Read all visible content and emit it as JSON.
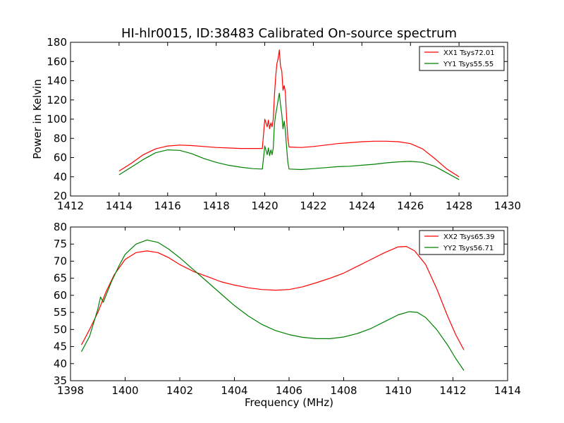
{
  "chart_data": [
    {
      "type": "line",
      "title": "HI-hlr0015, ID:38483 Calibrated On-source spectrum",
      "xlabel": "",
      "ylabel": "Power in Kelvin",
      "xlim": [
        1412,
        1430
      ],
      "ylim": [
        20,
        180
      ],
      "xticks": [
        1412,
        1414,
        1416,
        1418,
        1420,
        1422,
        1424,
        1426,
        1428,
        1430
      ],
      "yticks": [
        20,
        40,
        60,
        80,
        100,
        120,
        140,
        160,
        180
      ],
      "grid": false,
      "legend_position": "top-right",
      "series": [
        {
          "name": "XX1 Tsys72.01",
          "color": "#ff0000",
          "points": [
            [
              1414,
              46
            ],
            [
              1414.5,
              54
            ],
            [
              1415,
              63
            ],
            [
              1415.5,
              69
            ],
            [
              1416,
              72
            ],
            [
              1416.5,
              73
            ],
            [
              1417,
              72.5
            ],
            [
              1417.5,
              71.5
            ],
            [
              1418,
              70.5
            ],
            [
              1418.5,
              70
            ],
            [
              1419,
              69.5
            ],
            [
              1419.5,
              69.5
            ],
            [
              1419.9,
              69.5
            ],
            [
              1420.0,
              100
            ],
            [
              1420.1,
              92
            ],
            [
              1420.15,
              99
            ],
            [
              1420.2,
              90
            ],
            [
              1420.25,
              96
            ],
            [
              1420.3,
              92
            ],
            [
              1420.35,
              100
            ],
            [
              1420.4,
              125
            ],
            [
              1420.45,
              145
            ],
            [
              1420.5,
              158
            ],
            [
              1420.55,
              163
            ],
            [
              1420.6,
              172
            ],
            [
              1420.65,
              155
            ],
            [
              1420.7,
              150
            ],
            [
              1420.75,
              130
            ],
            [
              1420.8,
              135
            ],
            [
              1420.85,
              128
            ],
            [
              1420.9,
              100
            ],
            [
              1420.95,
              80
            ],
            [
              1421.0,
              71
            ],
            [
              1421.5,
              70.5
            ],
            [
              1422,
              71.5
            ],
            [
              1422.5,
              73
            ],
            [
              1423,
              74.5
            ],
            [
              1423.5,
              75.5
            ],
            [
              1424,
              76.5
            ],
            [
              1424.5,
              77
            ],
            [
              1425,
              77
            ],
            [
              1425.5,
              76.5
            ],
            [
              1426,
              74.5
            ],
            [
              1426.5,
              69
            ],
            [
              1427,
              59
            ],
            [
              1427.5,
              48
            ],
            [
              1428,
              40
            ]
          ]
        },
        {
          "name": "YY1 Tsys55.55",
          "color": "#008000",
          "points": [
            [
              1414,
              42
            ],
            [
              1414.5,
              50
            ],
            [
              1415,
              58
            ],
            [
              1415.5,
              65
            ],
            [
              1416,
              68
            ],
            [
              1416.5,
              67.5
            ],
            [
              1417,
              64
            ],
            [
              1417.5,
              59
            ],
            [
              1418,
              55
            ],
            [
              1418.5,
              52
            ],
            [
              1419,
              50
            ],
            [
              1419.5,
              48.5
            ],
            [
              1419.9,
              48
            ],
            [
              1420.0,
              72
            ],
            [
              1420.1,
              63
            ],
            [
              1420.15,
              70
            ],
            [
              1420.2,
              62
            ],
            [
              1420.25,
              68
            ],
            [
              1420.3,
              63
            ],
            [
              1420.35,
              70
            ],
            [
              1420.4,
              95
            ],
            [
              1420.45,
              105
            ],
            [
              1420.5,
              112
            ],
            [
              1420.55,
              120
            ],
            [
              1420.6,
              127
            ],
            [
              1420.65,
              115
            ],
            [
              1420.7,
              105
            ],
            [
              1420.75,
              90
            ],
            [
              1420.8,
              98
            ],
            [
              1420.85,
              88
            ],
            [
              1420.9,
              70
            ],
            [
              1420.95,
              55
            ],
            [
              1421.0,
              48
            ],
            [
              1421.5,
              47.5
            ],
            [
              1422,
              48.5
            ],
            [
              1422.5,
              49.5
            ],
            [
              1423,
              50.5
            ],
            [
              1423.5,
              51
            ],
            [
              1424,
              52
            ],
            [
              1424.5,
              53
            ],
            [
              1425,
              54.5
            ],
            [
              1425.5,
              55.5
            ],
            [
              1426,
              56
            ],
            [
              1426.5,
              55
            ],
            [
              1427,
              51
            ],
            [
              1427.5,
              44
            ],
            [
              1428,
              37
            ]
          ]
        }
      ]
    },
    {
      "type": "line",
      "title": "",
      "xlabel": "Frequency (MHz)",
      "ylabel": "",
      "xlim": [
        1398,
        1414
      ],
      "ylim": [
        35,
        80
      ],
      "xticks": [
        1398,
        1400,
        1402,
        1404,
        1406,
        1408,
        1410,
        1412,
        1414
      ],
      "yticks": [
        35,
        40,
        45,
        50,
        55,
        60,
        65,
        70,
        75,
        80
      ],
      "grid": false,
      "legend_position": "top-right",
      "series": [
        {
          "name": "XX2 Tsys65.39",
          "color": "#ff0000",
          "points": [
            [
              1398.4,
              45.5
            ],
            [
              1398.7,
              50
            ],
            [
              1399,
              55
            ],
            [
              1399.3,
              61
            ],
            [
              1399.6,
              66
            ],
            [
              1400,
              70.5
            ],
            [
              1400.4,
              72.5
            ],
            [
              1400.8,
              73
            ],
            [
              1401.2,
              72.5
            ],
            [
              1401.6,
              71
            ],
            [
              1402,
              69
            ],
            [
              1402.5,
              67
            ],
            [
              1403,
              65.5
            ],
            [
              1403.5,
              64
            ],
            [
              1404,
              63
            ],
            [
              1404.5,
              62.2
            ],
            [
              1405,
              61.7
            ],
            [
              1405.5,
              61.5
            ],
            [
              1406,
              61.7
            ],
            [
              1406.5,
              62.5
            ],
            [
              1407,
              63.7
            ],
            [
              1407.5,
              65
            ],
            [
              1408,
              66.5
            ],
            [
              1408.5,
              68.5
            ],
            [
              1409,
              70.5
            ],
            [
              1409.5,
              72.5
            ],
            [
              1410,
              74.2
            ],
            [
              1410.3,
              74.3
            ],
            [
              1410.6,
              73
            ],
            [
              1411,
              69
            ],
            [
              1411.4,
              62
            ],
            [
              1411.8,
              54
            ],
            [
              1412.1,
              48.5
            ],
            [
              1412.4,
              44
            ]
          ]
        },
        {
          "name": "YY2 Tsys56.71",
          "color": "#008000",
          "points": [
            [
              1398.4,
              43.5
            ],
            [
              1398.7,
              48
            ],
            [
              1399,
              56
            ],
            [
              1399.1,
              59.5
            ],
            [
              1399.2,
              58
            ],
            [
              1399.5,
              64
            ],
            [
              1399.8,
              69
            ],
            [
              1400,
              72
            ],
            [
              1400.4,
              75
            ],
            [
              1400.8,
              76.2
            ],
            [
              1401.2,
              75.5
            ],
            [
              1401.6,
              73.5
            ],
            [
              1402,
              71
            ],
            [
              1402.5,
              67.5
            ],
            [
              1403,
              64
            ],
            [
              1403.5,
              60.5
            ],
            [
              1404,
              57
            ],
            [
              1404.5,
              54
            ],
            [
              1405,
              51.5
            ],
            [
              1405.5,
              49.7
            ],
            [
              1406,
              48.5
            ],
            [
              1406.5,
              47.7
            ],
            [
              1407,
              47.3
            ],
            [
              1407.5,
              47.3
            ],
            [
              1408,
              47.8
            ],
            [
              1408.5,
              48.8
            ],
            [
              1409,
              50.3
            ],
            [
              1409.5,
              52.3
            ],
            [
              1410,
              54.3
            ],
            [
              1410.4,
              55.2
            ],
            [
              1410.7,
              55
            ],
            [
              1411,
              53.5
            ],
            [
              1411.4,
              50
            ],
            [
              1411.8,
              45.5
            ],
            [
              1412.1,
              41.5
            ],
            [
              1412.4,
              38
            ]
          ]
        }
      ]
    }
  ]
}
